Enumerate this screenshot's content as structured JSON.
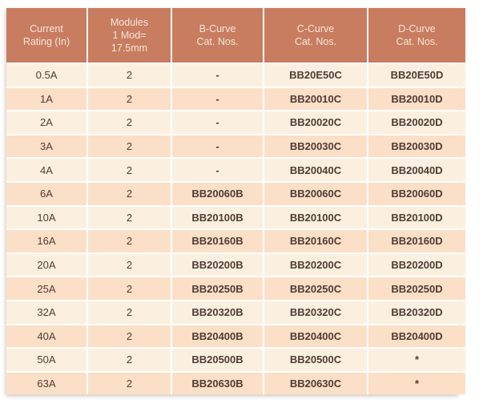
{
  "colors": {
    "header_bg": "#C87C60",
    "header_text": "#F5E8D7",
    "row_light_bg": "#FBF0DF",
    "row_dark_bg": "#FBDFC7",
    "body_text": "#4F3B34",
    "separator": "#FFFFFF"
  },
  "table": {
    "headers": [
      {
        "id": "current-rating",
        "label": "Current\nRating (In)"
      },
      {
        "id": "modules",
        "label": "Modules\n1 Mod=\n17.5mm"
      },
      {
        "id": "b-curve",
        "label": "B-Curve\nCat. Nos."
      },
      {
        "id": "c-curve",
        "label": "C-Curve\nCat. Nos."
      },
      {
        "id": "d-curve",
        "label": "D-Curve\nCat. Nos."
      }
    ],
    "rows": [
      [
        "0.5A",
        "2",
        "-",
        "BB20E50C",
        "BB20E50D"
      ],
      [
        "1A",
        "2",
        "-",
        "BB20010C",
        "BB20010D"
      ],
      [
        "2A",
        "2",
        "-",
        "BB20020C",
        "BB20020D"
      ],
      [
        "3A",
        "2",
        "-",
        "BB20030C",
        "BB20030D"
      ],
      [
        "4A",
        "2",
        "-",
        "BB20040C",
        "BB20040D"
      ],
      [
        "6A",
        "2",
        "BB20060B",
        "BB20060C",
        "BB20060D"
      ],
      [
        "10A",
        "2",
        "BB20100B",
        "BB20100C",
        "BB20100D"
      ],
      [
        "16A",
        "2",
        "BB20160B",
        "BB20160C",
        "BB20160D"
      ],
      [
        "20A",
        "2",
        "BB20200B",
        "BB20200C",
        "BB20200D"
      ],
      [
        "25A",
        "2",
        "BB20250B",
        "BB20250C",
        "BB20250D"
      ],
      [
        "32A",
        "2",
        "BB20320B",
        "BB20320C",
        "BB20320D"
      ],
      [
        "40A",
        "2",
        "BB20400B",
        "BB20400C",
        "BB20400D"
      ],
      [
        "50A",
        "2",
        "BB20500B",
        "BB20500C",
        "*"
      ],
      [
        "63A",
        "2",
        "BB20630B",
        "BB20630C",
        "*"
      ]
    ]
  }
}
